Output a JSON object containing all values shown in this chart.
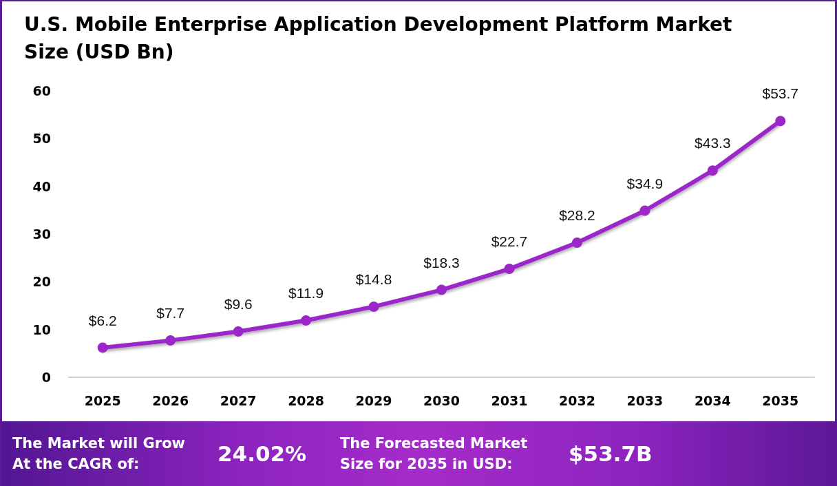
{
  "chart_data": {
    "type": "line",
    "title": "U.S. Mobile Enterprise Application Development Platform Market Size (USD Bn)",
    "categories": [
      "2025",
      "2026",
      "2027",
      "2028",
      "2029",
      "2030",
      "2031",
      "2032",
      "2033",
      "2034",
      "2035"
    ],
    "values": [
      6.2,
      7.7,
      9.6,
      11.9,
      14.8,
      18.3,
      22.7,
      28.2,
      34.9,
      43.3,
      53.7
    ],
    "value_labels": [
      "$6.2",
      "$7.7",
      "$9.6",
      "$11.9",
      "$14.8",
      "$18.3",
      "$22.7",
      "$28.2",
      "$34.9",
      "$43.3",
      "$53.7"
    ],
    "color": "#9b27c9",
    "marker": "circle",
    "grid": false,
    "ylim": [
      0,
      60
    ],
    "yticks": [
      0,
      10,
      20,
      30,
      40,
      50,
      60
    ],
    "annotations": [
      "The Market will Grow At the CAGR of:",
      "24.02%",
      "The Forecasted Market Size for 2035 in USD:",
      "$53.7B"
    ]
  }
}
